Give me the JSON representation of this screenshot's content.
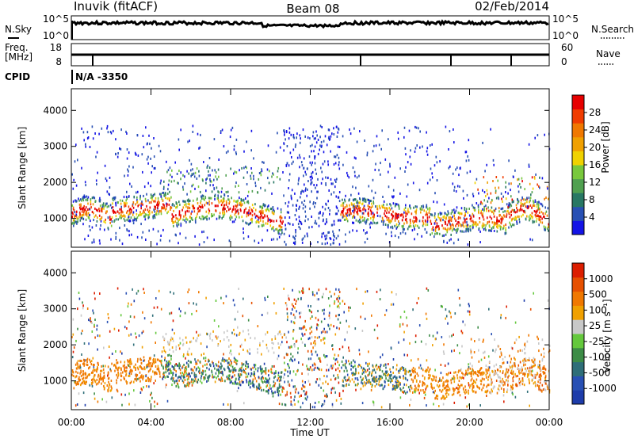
{
  "header": {
    "station": "Inuvik (fitACF)",
    "beam": "Beam 08",
    "date": "02/Feb/2014"
  },
  "status_panel": {
    "nsky_label": "N.Sky",
    "nsearch_label": "N.Search",
    "nsky_ticks": [
      "10^5",
      "10^0"
    ],
    "nsearch_ticks": [
      "10^5",
      "10^0"
    ],
    "freq_label": "Freq.",
    "freq_unit": "[MHz]",
    "freq_ticks": [
      "18",
      "8"
    ],
    "nave_label": "Nave",
    "nave_ticks": [
      "60",
      "0"
    ],
    "cpid_label": "CPID",
    "cpid_value": "N/A  -3350"
  },
  "chart_data": [
    {
      "type": "heatmap",
      "title": "",
      "xlabel": "",
      "ylabel": "Slant Range [km]",
      "xlim": [
        "00:00",
        "24:00"
      ],
      "ylim": [
        200,
        4600
      ],
      "y_ticks": [
        "1000",
        "2000",
        "3000",
        "4000"
      ],
      "x_ticks": [
        "00:00",
        "04:00",
        "08:00",
        "12:00",
        "16:00",
        "20:00",
        "00:00"
      ],
      "colorbar": {
        "label": "Power [dB]",
        "ticks": [
          "4",
          "8",
          "12",
          "16",
          "20",
          "24",
          "28"
        ],
        "colors": [
          "#1414e6",
          "#2850b4",
          "#287864",
          "#50a050",
          "#78c83c",
          "#f0d200",
          "#f0a000",
          "#f07800",
          "#f03c00",
          "#e60000"
        ]
      }
    },
    {
      "type": "heatmap",
      "title": "",
      "xlabel": "Time UT",
      "ylabel": "Slant Range [km]",
      "xlim": [
        "00:00",
        "24:00"
      ],
      "ylim": [
        200,
        4600
      ],
      "y_ticks": [
        "1000",
        "2000",
        "3000",
        "4000"
      ],
      "x_ticks": [
        "00:00",
        "04:00",
        "08:00",
        "12:00",
        "16:00",
        "20:00",
        "00:00"
      ],
      "colorbar": {
        "label": "Velocity [m s⁻¹]",
        "ticks": [
          "1000",
          "500",
          "100",
          "25",
          "-25",
          "-100",
          "-500",
          "-1000"
        ],
        "colors": [
          "#1e3caa",
          "#2850b4",
          "#2e6e78",
          "#3c8c46",
          "#64c83c",
          "#c8c8c8",
          "#f0a000",
          "#f07800",
          "#e65000",
          "#dc1e00"
        ]
      }
    }
  ]
}
